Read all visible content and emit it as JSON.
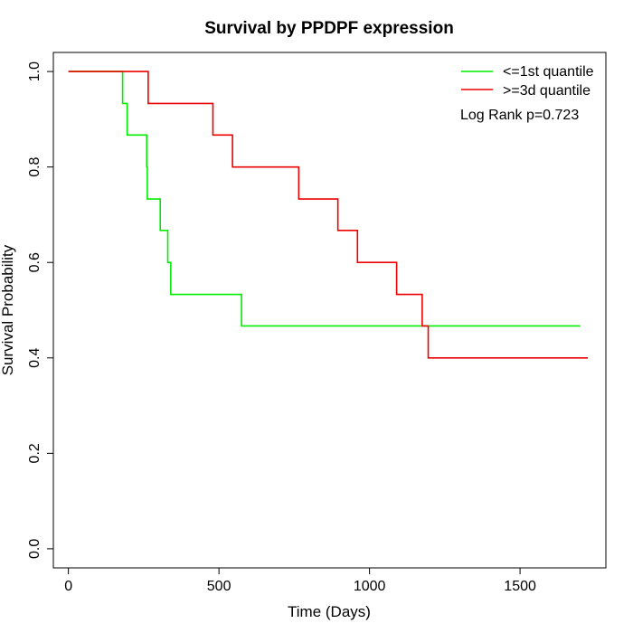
{
  "chart_data": {
    "type": "line",
    "title": "Survival by PPDPF expression",
    "xlabel": "Time (Days)",
    "ylabel": "Survival Probability",
    "xlim": [
      -50,
      1785
    ],
    "ylim": [
      -0.04,
      1.04
    ],
    "x_ticks": [
      0,
      500,
      1000,
      1500
    ],
    "y_ticks": [
      0.0,
      0.2,
      0.4,
      0.6,
      0.8,
      1.0
    ],
    "x_tick_labels": [
      "0",
      "500",
      "1000",
      "1500"
    ],
    "y_tick_labels": [
      "0.0",
      "0.2",
      "0.4",
      "0.6",
      "0.8",
      "1.0"
    ],
    "legend_position": "top-right",
    "annotation": "Log Rank p=0.723",
    "series": [
      {
        "name": "<=1st quantile",
        "color": "#00ee00",
        "step_x": [
          0,
          180,
          195,
          260,
          262,
          305,
          330,
          340,
          575,
          1700
        ],
        "step_y": [
          1.0,
          0.933,
          0.867,
          0.8,
          0.733,
          0.667,
          0.6,
          0.533,
          0.467,
          0.467
        ]
      },
      {
        "name": ">=3d quantile",
        "color": "#ee0000",
        "step_x": [
          0,
          265,
          480,
          545,
          765,
          895,
          960,
          1090,
          1175,
          1195,
          1725
        ],
        "step_y": [
          1.0,
          0.933,
          0.867,
          0.8,
          0.733,
          0.667,
          0.6,
          0.533,
          0.467,
          0.4,
          0.4
        ]
      }
    ]
  }
}
